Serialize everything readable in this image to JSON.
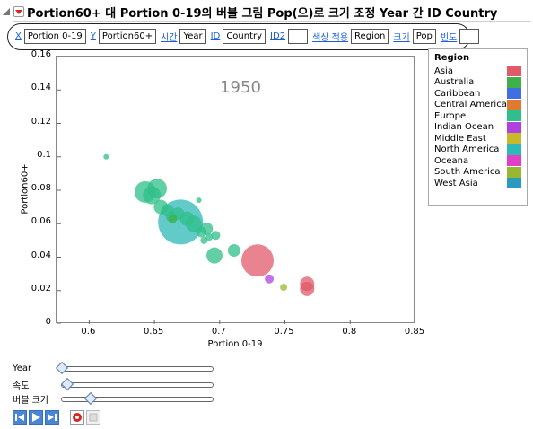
{
  "title": "Portion60+ 대 Portion 0-19의 버블 그림 Pop(으)로 크기 조정 Year 간 ID Country",
  "roles": [
    {
      "link": "X",
      "value": "Portion 0-19"
    },
    {
      "link": "Y",
      "value": "Portion60+"
    },
    {
      "link": "시간",
      "value": "Year"
    },
    {
      "link": "ID",
      "value": "Country"
    },
    {
      "link": "ID2",
      "value": ""
    },
    {
      "link": "색상 적용",
      "value": "Region"
    },
    {
      "link": "크기",
      "value": "Pop"
    },
    {
      "link": "빈도",
      "value": ""
    }
  ],
  "year_watermark": "1950",
  "chart_data": {
    "type": "scatter",
    "xlabel": "Portion 0-19",
    "ylabel": "Portion60+",
    "xlim": [
      0.575,
      0.85
    ],
    "ylim": [
      0,
      0.16
    ],
    "x_ticks": [
      "0.6",
      "0.65",
      "0.7",
      "0.75",
      "0.8",
      "0.85"
    ],
    "y_ticks": [
      "0",
      "0.02",
      "0.04",
      "0.06",
      "0.08",
      "0.1",
      "0.12",
      "0.14",
      "0.16"
    ],
    "legend": {
      "title": "Region",
      "position": "right",
      "entries": [
        {
          "name": "Asia",
          "color": "#e05a6a"
        },
        {
          "name": "Australia",
          "color": "#3db24a"
        },
        {
          "name": "Caribbean",
          "color": "#3f6fe0"
        },
        {
          "name": "Central America",
          "color": "#e07a30"
        },
        {
          "name": "Europe",
          "color": "#2fbf8a"
        },
        {
          "name": "Indian Ocean",
          "color": "#b040e0"
        },
        {
          "name": "Middle East",
          "color": "#c8b82a"
        },
        {
          "name": "North America",
          "color": "#2fb8b8"
        },
        {
          "name": "Oceana",
          "color": "#e040c8"
        },
        {
          "name": "South America",
          "color": "#98b830"
        },
        {
          "name": "West Asia",
          "color": "#2a9ac0"
        }
      ]
    },
    "points": [
      {
        "x": 0.613,
        "y": 0.1,
        "r": 3,
        "region": "Europe"
      },
      {
        "x": 0.643,
        "y": 0.079,
        "r": 12,
        "region": "Europe"
      },
      {
        "x": 0.652,
        "y": 0.081,
        "r": 11,
        "region": "Europe"
      },
      {
        "x": 0.648,
        "y": 0.077,
        "r": 10,
        "region": "Europe"
      },
      {
        "x": 0.655,
        "y": 0.07,
        "r": 8,
        "region": "Europe"
      },
      {
        "x": 0.66,
        "y": 0.068,
        "r": 7,
        "region": "Europe"
      },
      {
        "x": 0.663,
        "y": 0.064,
        "r": 6,
        "region": "Europe"
      },
      {
        "x": 0.668,
        "y": 0.066,
        "r": 7,
        "region": "Europe"
      },
      {
        "x": 0.67,
        "y": 0.061,
        "r": 25,
        "region": "North America"
      },
      {
        "x": 0.675,
        "y": 0.063,
        "r": 8,
        "region": "Europe"
      },
      {
        "x": 0.68,
        "y": 0.06,
        "r": 9,
        "region": "Europe"
      },
      {
        "x": 0.684,
        "y": 0.074,
        "r": 3,
        "region": "Europe"
      },
      {
        "x": 0.686,
        "y": 0.055,
        "r": 6,
        "region": "Europe"
      },
      {
        "x": 0.69,
        "y": 0.057,
        "r": 7,
        "region": "Europe"
      },
      {
        "x": 0.692,
        "y": 0.052,
        "r": 4,
        "region": "Europe"
      },
      {
        "x": 0.697,
        "y": 0.053,
        "r": 5,
        "region": "Europe"
      },
      {
        "x": 0.688,
        "y": 0.05,
        "r": 4,
        "region": "Europe"
      },
      {
        "x": 0.696,
        "y": 0.041,
        "r": 9,
        "region": "Europe"
      },
      {
        "x": 0.711,
        "y": 0.044,
        "r": 7,
        "region": "Europe"
      },
      {
        "x": 0.664,
        "y": 0.063,
        "r": 5,
        "region": "Australia"
      },
      {
        "x": 0.729,
        "y": 0.038,
        "r": 18,
        "region": "Asia"
      },
      {
        "x": 0.738,
        "y": 0.027,
        "r": 5,
        "region": "Indian Ocean"
      },
      {
        "x": 0.749,
        "y": 0.022,
        "r": 4,
        "region": "South America"
      },
      {
        "x": 0.767,
        "y": 0.024,
        "r": 8,
        "region": "Asia"
      },
      {
        "x": 0.767,
        "y": 0.021,
        "r": 8,
        "region": "Asia"
      }
    ]
  },
  "sliders": [
    {
      "label": "Year",
      "value": 0.0
    },
    {
      "label": "속도",
      "value": 0.04
    },
    {
      "label": "버블 크기",
      "value": 0.2
    }
  ]
}
